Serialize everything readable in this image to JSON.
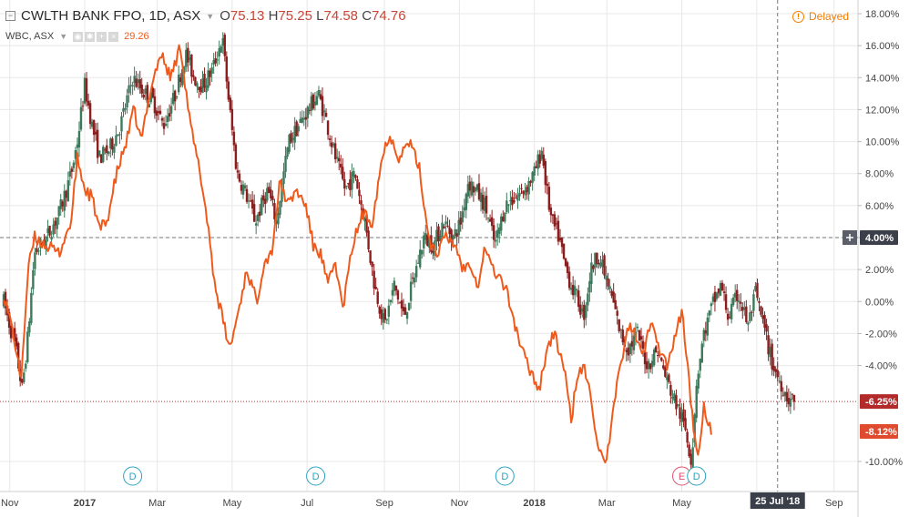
{
  "header": {
    "symbol_title": "CWLTH BANK FPO, 1D, ASX",
    "ohlc": {
      "o_label": "O",
      "o": "75.13",
      "h_label": "H",
      "h": "75.25",
      "l_label": "L",
      "l": "74.58",
      "c_label": "C",
      "c": "74.76"
    },
    "compare_symbol": "WBC, ASX",
    "compare_value": "29.26",
    "delayed_label": "Delayed"
  },
  "colors": {
    "up": "#26a69a",
    "down": "#c0392b",
    "up_candle": "#3d7a5c",
    "down_candle": "#8b1e1e",
    "compare_line": "#ef5a1c",
    "grid": "#e8e8e8",
    "badge_dark": "#3a3f4a",
    "badge_red": "#e04a2f",
    "dividend": "#29a3c2",
    "earnings": "#e0506c"
  },
  "chart_data": {
    "type": "line",
    "title": "CWLTH BANK FPO, 1D, ASX",
    "y_axis": {
      "min": -11.5,
      "max": 18.5,
      "unit": "%",
      "ticks": [
        "18.00%",
        "16.00%",
        "14.00%",
        "12.00%",
        "10.00%",
        "8.00%",
        "6.00%",
        "4.00%",
        "2.00%",
        "0.00%",
        "-2.00%",
        "-4.00%",
        "-6.25%",
        "-8.12%",
        "-10.00%"
      ],
      "tick_values": [
        18,
        16,
        14,
        12,
        10,
        8,
        6,
        4,
        2,
        0,
        -2,
        -4,
        -6.25,
        -8.12,
        -10
      ]
    },
    "x_axis": {
      "ticks": [
        "Nov",
        "2017",
        "Mar",
        "May",
        "Jul",
        "Sep",
        "Nov",
        "2018",
        "Mar",
        "May",
        "Jul",
        "Sep"
      ],
      "tick_days": [
        5,
        66,
        125,
        186,
        247,
        310,
        371,
        432,
        491,
        552,
        613,
        676
      ],
      "range_days": [
        0,
        691
      ],
      "crosshair_label": "25 Jul '18",
      "crosshair_day": 630
    },
    "crosshair_value": 4.0,
    "crosshair_value_label": "4.00%",
    "last_values": {
      "CBA": -6.25,
      "WBC": -8.12
    },
    "series": [
      {
        "name": "CWLTH BANK FPO",
        "style": "candles",
        "points": [
          [
            0,
            0
          ],
          [
            10,
            -3
          ],
          [
            15,
            -5.5
          ],
          [
            20,
            -2
          ],
          [
            25,
            3
          ],
          [
            35,
            4
          ],
          [
            45,
            5.5
          ],
          [
            55,
            8
          ],
          [
            60,
            10
          ],
          [
            66,
            13.5
          ],
          [
            72,
            11
          ],
          [
            78,
            9
          ],
          [
            86,
            9.5
          ],
          [
            95,
            11
          ],
          [
            105,
            14
          ],
          [
            115,
            13
          ],
          [
            122,
            12.5
          ],
          [
            130,
            11
          ],
          [
            140,
            13
          ],
          [
            148,
            15.5
          ],
          [
            155,
            14
          ],
          [
            162,
            13.5
          ],
          [
            170,
            14.5
          ],
          [
            178,
            16.5
          ],
          [
            184,
            12
          ],
          [
            190,
            8
          ],
          [
            196,
            7
          ],
          [
            205,
            5
          ],
          [
            215,
            7
          ],
          [
            222,
            5
          ],
          [
            232,
            10
          ],
          [
            240,
            11
          ],
          [
            248,
            12
          ],
          [
            256,
            13
          ],
          [
            262,
            11.5
          ],
          [
            270,
            9
          ],
          [
            278,
            7
          ],
          [
            286,
            8
          ],
          [
            294,
            5
          ],
          [
            302,
            1
          ],
          [
            310,
            -1.5
          ],
          [
            318,
            1
          ],
          [
            326,
            -1
          ],
          [
            334,
            1.5
          ],
          [
            342,
            4
          ],
          [
            350,
            3.5
          ],
          [
            358,
            5
          ],
          [
            366,
            4
          ],
          [
            372,
            5
          ],
          [
            378,
            7.5
          ],
          [
            384,
            7
          ],
          [
            392,
            6
          ],
          [
            400,
            3.5
          ],
          [
            408,
            6
          ],
          [
            416,
            6.5
          ],
          [
            424,
            7
          ],
          [
            432,
            8
          ],
          [
            438,
            9.5
          ],
          [
            442,
            7
          ],
          [
            446,
            5
          ],
          [
            452,
            4
          ],
          [
            456,
            2.5
          ],
          [
            462,
            1
          ],
          [
            468,
            0
          ],
          [
            472,
            -1
          ],
          [
            478,
            2
          ],
          [
            484,
            3
          ],
          [
            490,
            1.5
          ],
          [
            496,
            0
          ],
          [
            502,
            -2
          ],
          [
            508,
            -3
          ],
          [
            516,
            -2
          ],
          [
            524,
            -4
          ],
          [
            532,
            -3
          ],
          [
            540,
            -5
          ],
          [
            548,
            -6.5
          ],
          [
            555,
            -8
          ],
          [
            560,
            -10
          ],
          [
            564,
            -5
          ],
          [
            570,
            -2
          ],
          [
            578,
            0
          ],
          [
            584,
            1
          ],
          [
            590,
            -1
          ],
          [
            598,
            0.5
          ],
          [
            606,
            -1.5
          ],
          [
            612,
            0.5
          ],
          [
            620,
            -2
          ],
          [
            626,
            -4
          ],
          [
            632,
            -5
          ],
          [
            638,
            -6
          ],
          [
            644,
            -6.25
          ]
        ]
      },
      {
        "name": "WBC",
        "style": "line",
        "points": [
          [
            0,
            0.5
          ],
          [
            8,
            -2
          ],
          [
            14,
            -5
          ],
          [
            20,
            2
          ],
          [
            25,
            4
          ],
          [
            35,
            3.5
          ],
          [
            45,
            3
          ],
          [
            55,
            5
          ],
          [
            60,
            9
          ],
          [
            66,
            7
          ],
          [
            72,
            6.5
          ],
          [
            78,
            4.5
          ],
          [
            84,
            5
          ],
          [
            92,
            8
          ],
          [
            100,
            10
          ],
          [
            106,
            12
          ],
          [
            112,
            10
          ],
          [
            120,
            13.5
          ],
          [
            128,
            15.5
          ],
          [
            136,
            14
          ],
          [
            144,
            16
          ],
          [
            152,
            11
          ],
          [
            160,
            8
          ],
          [
            166,
            5
          ],
          [
            172,
            1
          ],
          [
            178,
            -1
          ],
          [
            184,
            -3
          ],
          [
            190,
            -1
          ],
          [
            198,
            2
          ],
          [
            206,
            0
          ],
          [
            212,
            2.5
          ],
          [
            218,
            3
          ],
          [
            225,
            7.5
          ],
          [
            232,
            6
          ],
          [
            238,
            7
          ],
          [
            246,
            6
          ],
          [
            252,
            3.5
          ],
          [
            258,
            3
          ],
          [
            264,
            1
          ],
          [
            270,
            2.5
          ],
          [
            276,
            -0.5
          ],
          [
            284,
            3.5
          ],
          [
            292,
            5.5
          ],
          [
            300,
            5
          ],
          [
            308,
            9
          ],
          [
            314,
            10.5
          ],
          [
            322,
            9
          ],
          [
            330,
            10
          ],
          [
            338,
            8.5
          ],
          [
            346,
            4
          ],
          [
            352,
            3
          ],
          [
            360,
            4
          ],
          [
            368,
            3.5
          ],
          [
            374,
            2
          ],
          [
            380,
            2.5
          ],
          [
            386,
            1
          ],
          [
            392,
            3.5
          ],
          [
            398,
            2
          ],
          [
            404,
            1.5
          ],
          [
            410,
            0.5
          ],
          [
            418,
            -2
          ],
          [
            424,
            -3.5
          ],
          [
            430,
            -4.5
          ],
          [
            436,
            -5.5
          ],
          [
            442,
            -3
          ],
          [
            448,
            -2
          ],
          [
            456,
            -4
          ],
          [
            462,
            -7.5
          ],
          [
            466,
            -5
          ],
          [
            472,
            -4
          ],
          [
            478,
            -6
          ],
          [
            484,
            -9
          ],
          [
            490,
            -10.5
          ],
          [
            496,
            -7
          ],
          [
            502,
            -4
          ],
          [
            508,
            -1.5
          ],
          [
            514,
            -2
          ],
          [
            520,
            -3.5
          ],
          [
            528,
            -1
          ],
          [
            534,
            -3
          ],
          [
            540,
            -4
          ],
          [
            546,
            -2.5
          ],
          [
            552,
            -0.5
          ],
          [
            558,
            -5
          ],
          [
            562,
            -8.5
          ],
          [
            566,
            -9.5
          ],
          [
            570,
            -6.5
          ],
          [
            576,
            -8.12
          ]
        ]
      }
    ],
    "events": [
      {
        "type": "D",
        "day": 105
      },
      {
        "type": "D",
        "day": 254
      },
      {
        "type": "D",
        "day": 408
      },
      {
        "type": "E",
        "day": 552
      },
      {
        "type": "D",
        "day": 564
      }
    ]
  }
}
